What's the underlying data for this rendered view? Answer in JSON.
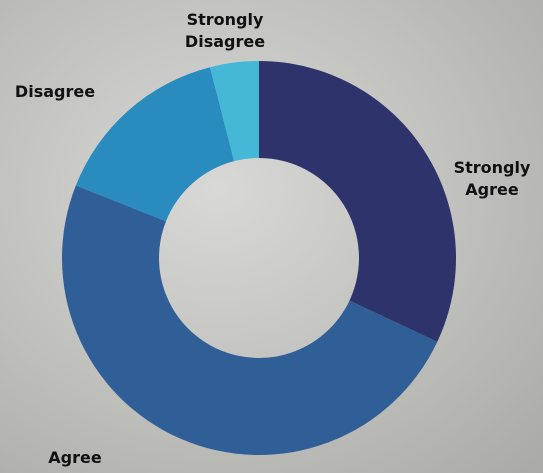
{
  "chart_data": {
    "type": "donut",
    "categories": [
      "Strongly Agree",
      "Agree",
      "Disagree",
      "Strongly Disagree"
    ],
    "values": [
      32,
      49,
      15,
      4
    ],
    "colors": [
      "#2f336b",
      "#2f5f96",
      "#2a8bbf",
      "#44b8d6"
    ]
  }
}
